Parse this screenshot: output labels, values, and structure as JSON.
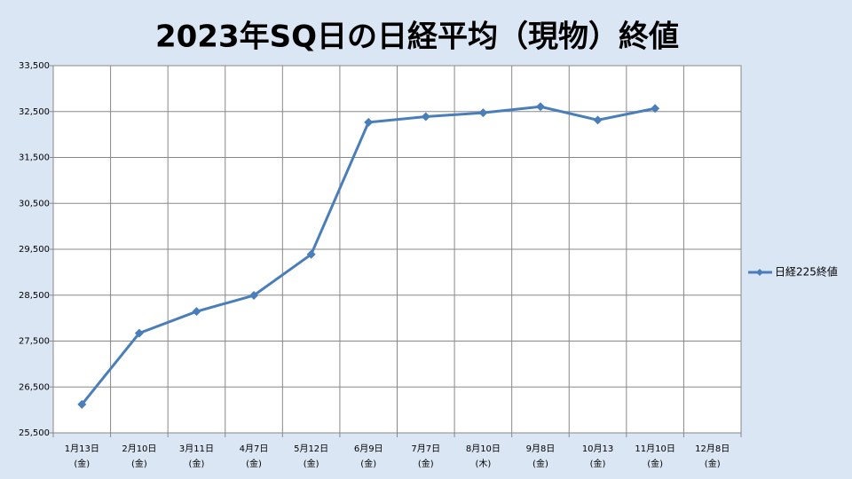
{
  "chart_data": {
    "type": "line",
    "title": "2023年SQ日の日経平均（現物）終値",
    "categories": [
      "1月13日",
      "2月10日",
      "3月11日",
      "4月7日",
      "5月12日",
      "6月9日",
      "7月7日",
      "8月10日",
      "9月8日",
      "10月13",
      "11月10日",
      "12月8日"
    ],
    "category_sublabels": [
      "(金)",
      "(金)",
      "(金)",
      "(金)",
      "(金)",
      "(金)",
      "(金)",
      "(木)",
      "(金)",
      "(金)",
      "(金)",
      "(金)"
    ],
    "series": [
      {
        "name": "日経225終値",
        "color": "#4a7ebb",
        "values": [
          26120,
          27671,
          28144,
          28495,
          29388,
          32265,
          32388,
          32473,
          32606,
          32315,
          32568,
          null
        ]
      }
    ],
    "ylim": [
      25500,
      33500
    ],
    "yticks": [
      {
        "value": 25500,
        "label": "25,500"
      },
      {
        "value": 26500,
        "label": "26,500"
      },
      {
        "value": 27500,
        "label": "27,500"
      },
      {
        "value": 28500,
        "label": "28,500"
      },
      {
        "value": 29500,
        "label": "29,500"
      },
      {
        "value": 30500,
        "label": "30,500"
      },
      {
        "value": 31500,
        "label": "31,500"
      },
      {
        "value": 32500,
        "label": "32,500"
      },
      {
        "value": 33500,
        "label": "33,500"
      }
    ],
    "grid": true,
    "legend": "right"
  }
}
